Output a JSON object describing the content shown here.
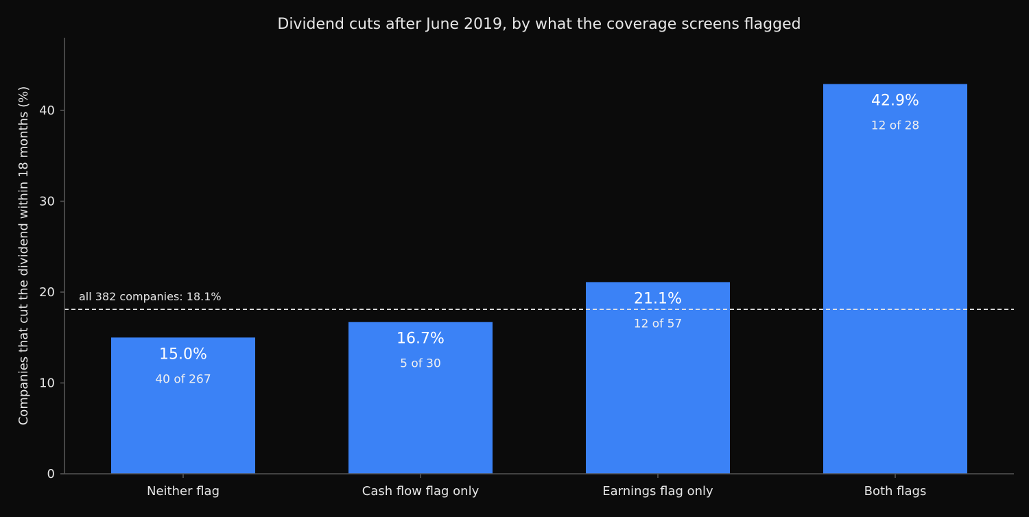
{
  "chart_data": {
    "type": "bar",
    "title": "Dividend cuts after June 2019, by what the coverage screens flagged",
    "xlabel": "",
    "ylabel": "Companies that cut the dividend within 18 months (%)",
    "categories": [
      "Neither flag",
      "Cash flow flag only",
      "Earnings flag only",
      "Both flags"
    ],
    "values": [
      15.0,
      16.7,
      21.1,
      42.9
    ],
    "value_labels": [
      "15.0%",
      "16.7%",
      "21.1%",
      "42.9%"
    ],
    "count_labels": [
      "40 of 267",
      "5 of 30",
      "12 of 57",
      "12 of 28"
    ],
    "ylim": [
      0,
      48
    ],
    "yticks": [
      0,
      10,
      20,
      30,
      40
    ],
    "grid": false,
    "reference_line": {
      "value": 18.1,
      "label": "all 382 companies: 18.1%",
      "style": "dashed"
    },
    "colors": {
      "background": "#0b0b0b",
      "bar": "#3b82f6",
      "text": "#e6e6e6",
      "axis": "#555555",
      "reference_line": "#e6e6e6"
    }
  }
}
